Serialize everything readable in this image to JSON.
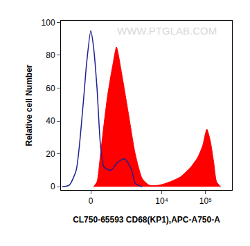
{
  "chart_data": {
    "type": "area",
    "x_label": "CL750-65593 CD68(KP1),APC-A750-A",
    "y_label": "Relative cell Number",
    "annotations": [
      "WWW.PTGLAB.COM"
    ],
    "xlim": [
      -1100,
      400000
    ],
    "xticks": [
      0,
      {
        "value": 10000,
        "label": "10⁴"
      },
      {
        "value": 100000,
        "label": "10⁵"
      }
    ],
    "ylim": [
      -2,
      101
    ],
    "yticks": [
      0,
      20,
      40,
      60,
      80,
      100
    ],
    "grid": false,
    "series": [
      {
        "type": "area",
        "color": "#ff0000",
        "x": [
          70,
          160,
          256,
          360,
          477,
          610,
          700,
          865,
          1150,
          1690,
          2460,
          3560,
          5140,
          8900,
          15400,
          26600,
          46000,
          66300,
          85600,
          106600,
          128000,
          153000,
          178000,
          221000
        ],
        "values": [
          0,
          3,
          20,
          38,
          55,
          68,
          75,
          85,
          70,
          45,
          20,
          5,
          1,
          1,
          3,
          6,
          12,
          18,
          25,
          35,
          28,
          15,
          3,
          0
        ]
      },
      {
        "type": "line",
        "color": "#1f1f8f",
        "x": [
          -1020,
          -665,
          -405,
          -198,
          -106,
          0,
          70,
          160,
          256,
          360,
          610,
          937,
          1390,
          2040,
          2460,
          3560
        ],
        "values": [
          0,
          1,
          10,
          50,
          75,
          95,
          85,
          60,
          25,
          12,
          10,
          15,
          17,
          10,
          2,
          0
        ]
      }
    ]
  }
}
